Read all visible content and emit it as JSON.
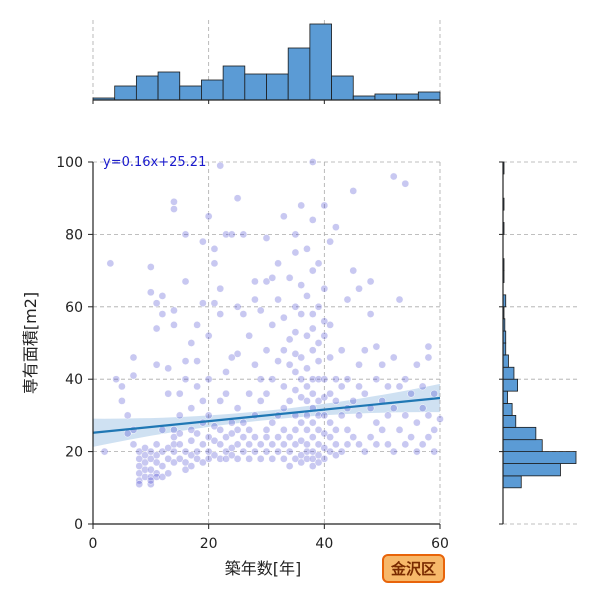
{
  "chart_data": {
    "type": "scatter",
    "xlabel": "築年数[年]",
    "ylabel": "専有面積[m2]",
    "xlim": [
      0,
      60
    ],
    "ylim": [
      0,
      100
    ],
    "x_ticks": [
      "0",
      "20",
      "40",
      "60"
    ],
    "y_ticks": [
      "0",
      "20",
      "40",
      "60",
      "80",
      "100"
    ],
    "grid": true,
    "regression": {
      "slope": 0.16,
      "intercept": 25.21,
      "label": "y=0.16x+25.21"
    },
    "badge": "金沢区",
    "colors": {
      "point": "#3a3acc",
      "line": "#1f77b4",
      "band": "#a8c8e8",
      "hist": "#5b9bd5"
    },
    "points": [
      [
        2,
        20
      ],
      [
        3,
        72
      ],
      [
        4,
        40
      ],
      [
        5,
        38
      ],
      [
        5,
        34
      ],
      [
        6,
        30
      ],
      [
        6,
        25
      ],
      [
        7,
        26
      ],
      [
        7,
        22
      ],
      [
        7,
        41
      ],
      [
        7,
        46
      ],
      [
        8,
        20
      ],
      [
        8,
        18
      ],
      [
        8,
        16
      ],
      [
        8,
        14
      ],
      [
        8,
        12
      ],
      [
        8,
        11
      ],
      [
        9,
        21
      ],
      [
        9,
        19
      ],
      [
        9,
        17
      ],
      [
        9,
        15
      ],
      [
        9,
        13
      ],
      [
        10,
        18
      ],
      [
        10,
        15
      ],
      [
        10,
        13
      ],
      [
        10,
        11
      ],
      [
        10,
        12
      ],
      [
        10,
        20
      ],
      [
        10,
        64
      ],
      [
        10,
        71
      ],
      [
        11,
        22
      ],
      [
        11,
        19
      ],
      [
        11,
        17
      ],
      [
        11,
        14
      ],
      [
        11,
        13
      ],
      [
        11,
        44
      ],
      [
        11,
        54
      ],
      [
        11,
        61
      ],
      [
        12,
        20
      ],
      [
        12,
        16
      ],
      [
        12,
        13
      ],
      [
        12,
        58
      ],
      [
        12,
        63
      ],
      [
        12,
        26
      ],
      [
        13,
        18
      ],
      [
        13,
        14
      ],
      [
        13,
        21
      ],
      [
        13,
        36
      ],
      [
        13,
        43
      ],
      [
        14,
        17
      ],
      [
        14,
        20
      ],
      [
        14,
        22
      ],
      [
        14,
        24
      ],
      [
        14,
        26
      ],
      [
        14,
        87
      ],
      [
        14,
        89
      ],
      [
        14,
        55
      ],
      [
        14,
        59
      ],
      [
        15,
        25
      ],
      [
        15,
        22
      ],
      [
        15,
        18
      ],
      [
        15,
        30
      ],
      [
        15,
        36
      ],
      [
        16,
        20
      ],
      [
        16,
        17
      ],
      [
        16,
        15
      ],
      [
        16,
        80
      ],
      [
        16,
        67
      ],
      [
        16,
        45
      ],
      [
        16,
        40
      ],
      [
        17,
        23
      ],
      [
        17,
        19
      ],
      [
        17,
        16
      ],
      [
        17,
        26
      ],
      [
        17,
        32
      ],
      [
        17,
        50
      ],
      [
        18,
        20
      ],
      [
        18,
        18
      ],
      [
        18,
        25
      ],
      [
        18,
        38
      ],
      [
        18,
        45
      ],
      [
        18,
        55
      ],
      [
        19,
        22
      ],
      [
        19,
        17
      ],
      [
        19,
        28
      ],
      [
        19,
        34
      ],
      [
        19,
        78
      ],
      [
        19,
        61
      ],
      [
        20,
        20
      ],
      [
        20,
        18
      ],
      [
        20,
        24
      ],
      [
        20,
        30
      ],
      [
        20,
        40
      ],
      [
        20,
        52
      ],
      [
        20,
        85
      ],
      [
        21,
        19
      ],
      [
        21,
        23
      ],
      [
        21,
        27
      ],
      [
        21,
        72
      ],
      [
        21,
        76
      ],
      [
        21,
        61
      ],
      [
        22,
        18
      ],
      [
        22,
        22
      ],
      [
        22,
        26
      ],
      [
        22,
        34
      ],
      [
        22,
        58
      ],
      [
        22,
        99
      ],
      [
        22,
        65
      ],
      [
        23,
        20
      ],
      [
        23,
        24
      ],
      [
        23,
        18
      ],
      [
        23,
        36
      ],
      [
        23,
        42
      ],
      [
        23,
        80
      ],
      [
        24,
        21
      ],
      [
        24,
        19
      ],
      [
        24,
        25
      ],
      [
        24,
        80
      ],
      [
        24,
        28
      ],
      [
        24,
        46
      ],
      [
        25,
        22
      ],
      [
        25,
        18
      ],
      [
        25,
        26
      ],
      [
        25,
        32
      ],
      [
        25,
        90
      ],
      [
        25,
        47
      ],
      [
        25,
        60
      ],
      [
        26,
        24
      ],
      [
        26,
        20
      ],
      [
        26,
        28
      ],
      [
        26,
        80
      ],
      [
        26,
        58
      ],
      [
        27,
        22
      ],
      [
        27,
        18
      ],
      [
        27,
        26
      ],
      [
        27,
        36
      ],
      [
        27,
        52
      ],
      [
        28,
        20
      ],
      [
        28,
        24
      ],
      [
        28,
        30
      ],
      [
        28,
        62
      ],
      [
        28,
        67
      ],
      [
        28,
        44
      ],
      [
        29,
        22
      ],
      [
        29,
        18
      ],
      [
        29,
        34
      ],
      [
        29,
        40
      ],
      [
        29,
        59
      ],
      [
        30,
        26
      ],
      [
        30,
        20
      ],
      [
        30,
        24
      ],
      [
        30,
        36
      ],
      [
        30,
        48
      ],
      [
        30,
        67
      ],
      [
        30,
        79
      ],
      [
        31,
        22
      ],
      [
        31,
        18
      ],
      [
        31,
        28
      ],
      [
        31,
        40
      ],
      [
        31,
        55
      ],
      [
        31,
        68
      ],
      [
        32,
        20
      ],
      [
        32,
        24
      ],
      [
        32,
        30
      ],
      [
        32,
        45
      ],
      [
        32,
        62
      ],
      [
        32,
        72
      ],
      [
        33,
        18
      ],
      [
        33,
        22
      ],
      [
        33,
        26
      ],
      [
        33,
        32
      ],
      [
        33,
        38
      ],
      [
        33,
        48
      ],
      [
        33,
        57
      ],
      [
        33,
        85
      ],
      [
        34,
        20
      ],
      [
        34,
        16
      ],
      [
        34,
        24
      ],
      [
        34,
        34
      ],
      [
        34,
        44
      ],
      [
        34,
        51
      ],
      [
        34,
        68
      ],
      [
        35,
        18
      ],
      [
        35,
        22
      ],
      [
        35,
        26
      ],
      [
        35,
        30
      ],
      [
        35,
        37
      ],
      [
        35,
        42
      ],
      [
        35,
        47
      ],
      [
        35,
        53
      ],
      [
        35,
        60
      ],
      [
        35,
        75
      ],
      [
        35,
        80
      ],
      [
        36,
        19
      ],
      [
        36,
        17
      ],
      [
        36,
        23
      ],
      [
        36,
        28
      ],
      [
        36,
        35
      ],
      [
        36,
        40
      ],
      [
        36,
        46
      ],
      [
        36,
        58
      ],
      [
        36,
        66
      ],
      [
        36,
        88
      ],
      [
        37,
        18
      ],
      [
        37,
        20
      ],
      [
        37,
        22
      ],
      [
        37,
        26
      ],
      [
        37,
        30
      ],
      [
        37,
        34
      ],
      [
        37,
        38
      ],
      [
        37,
        43
      ],
      [
        37,
        52
      ],
      [
        37,
        63
      ],
      [
        37,
        76
      ],
      [
        38,
        16
      ],
      [
        38,
        18
      ],
      [
        38,
        20
      ],
      [
        38,
        24
      ],
      [
        38,
        28
      ],
      [
        38,
        32
      ],
      [
        38,
        36
      ],
      [
        38,
        40
      ],
      [
        38,
        48
      ],
      [
        38,
        54
      ],
      [
        38,
        58
      ],
      [
        38,
        70
      ],
      [
        38,
        84
      ],
      [
        38,
        100
      ],
      [
        39,
        17
      ],
      [
        39,
        19
      ],
      [
        39,
        22
      ],
      [
        39,
        26
      ],
      [
        39,
        30
      ],
      [
        39,
        34
      ],
      [
        39,
        40
      ],
      [
        39,
        45
      ],
      [
        39,
        50
      ],
      [
        39,
        60
      ],
      [
        39,
        72
      ],
      [
        40,
        18
      ],
      [
        40,
        21
      ],
      [
        40,
        25
      ],
      [
        40,
        30
      ],
      [
        40,
        35
      ],
      [
        40,
        40
      ],
      [
        40,
        52
      ],
      [
        40,
        56
      ],
      [
        40,
        65
      ],
      [
        40,
        88
      ],
      [
        41,
        20
      ],
      [
        41,
        24
      ],
      [
        41,
        28
      ],
      [
        41,
        36
      ],
      [
        41,
        46
      ],
      [
        41,
        55
      ],
      [
        41,
        78
      ],
      [
        42,
        22
      ],
      [
        42,
        19
      ],
      [
        42,
        26
      ],
      [
        42,
        34
      ],
      [
        42,
        40
      ],
      [
        42,
        82
      ],
      [
        43,
        20
      ],
      [
        43,
        30
      ],
      [
        43,
        38
      ],
      [
        43,
        48
      ],
      [
        44,
        22
      ],
      [
        44,
        26
      ],
      [
        44,
        32
      ],
      [
        44,
        40
      ],
      [
        44,
        62
      ],
      [
        45,
        24
      ],
      [
        45,
        34
      ],
      [
        45,
        70
      ],
      [
        45,
        92
      ],
      [
        46,
        22
      ],
      [
        46,
        30
      ],
      [
        46,
        38
      ],
      [
        46,
        44
      ],
      [
        46,
        65
      ],
      [
        47,
        20
      ],
      [
        47,
        36
      ],
      [
        47,
        48
      ],
      [
        48,
        24
      ],
      [
        48,
        32
      ],
      [
        48,
        58
      ],
      [
        48,
        67
      ],
      [
        49,
        22
      ],
      [
        49,
        28
      ],
      [
        49,
        40
      ],
      [
        49,
        49
      ],
      [
        50,
        26
      ],
      [
        50,
        34
      ],
      [
        50,
        44
      ],
      [
        51,
        22
      ],
      [
        51,
        30
      ],
      [
        51,
        38
      ],
      [
        52,
        20
      ],
      [
        52,
        32
      ],
      [
        52,
        46
      ],
      [
        52,
        96
      ],
      [
        53,
        26
      ],
      [
        53,
        38
      ],
      [
        53,
        62
      ],
      [
        54,
        22
      ],
      [
        54,
        30
      ],
      [
        54,
        40
      ],
      [
        54,
        94
      ],
      [
        55,
        24
      ],
      [
        55,
        36
      ],
      [
        56,
        28
      ],
      [
        56,
        44
      ],
      [
        56,
        20
      ],
      [
        57,
        22
      ],
      [
        57,
        32
      ],
      [
        57,
        38
      ],
      [
        58,
        24
      ],
      [
        58,
        30
      ],
      [
        58,
        49
      ],
      [
        58,
        46
      ],
      [
        59,
        20
      ],
      [
        59,
        26
      ],
      [
        59,
        36
      ],
      [
        60,
        29
      ]
    ],
    "top_hist": {
      "bin_edges": [
        0,
        3.75,
        7.5,
        11.25,
        15,
        18.75,
        22.5,
        26.25,
        30,
        33.75,
        37.5,
        41.25,
        45,
        48.75,
        52.5,
        56.25,
        60
      ],
      "counts": [
        1,
        7,
        12,
        14,
        7,
        10,
        17,
        13,
        13,
        26,
        38,
        12,
        2,
        3,
        3,
        4,
        1
      ]
    },
    "right_hist": {
      "bin_edges": [
        0,
        3.3,
        6.7,
        10,
        13.3,
        16.7,
        20,
        23.3,
        26.7,
        30,
        33.3,
        36.7,
        40,
        43.3,
        46.7,
        50,
        53.3,
        56.7,
        60,
        63.3,
        66.7,
        70,
        73.3,
        76.7,
        80,
        83.3,
        86.7,
        90,
        93.3,
        96.7,
        100
      ],
      "counts": [
        0,
        0,
        0,
        20,
        63,
        80,
        43,
        36,
        14,
        10,
        5,
        16,
        12,
        6,
        3,
        3,
        2,
        1,
        3,
        0,
        1,
        1,
        0,
        0,
        1,
        0,
        1,
        0,
        0,
        1
      ]
    }
  }
}
